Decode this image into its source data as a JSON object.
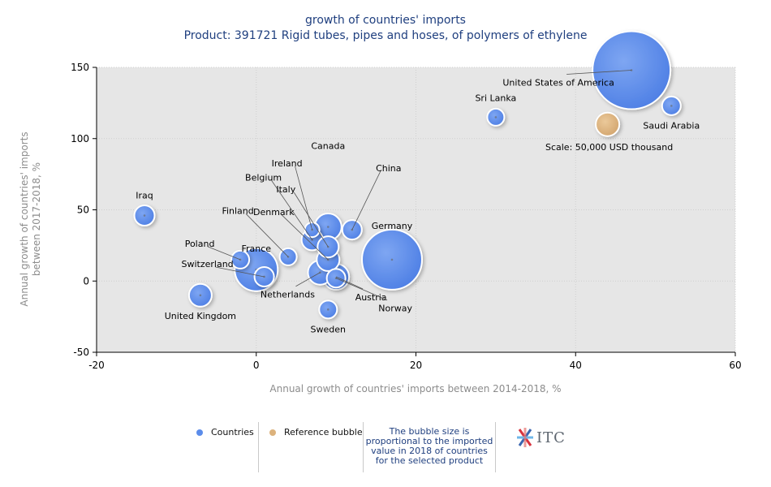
{
  "title_line1": "growth of countries' imports",
  "title_line2": "Product: 391721 Rigid tubes, pipes and hoses, of polymers of ethylene",
  "chart_data": {
    "type": "scatter",
    "subtype": "bubble",
    "xlabel": "Annual growth of countries' imports between 2014-2018, %",
    "ylabel": "Annual growth of countries' imports between 2017-2018, %",
    "xlim": [
      -20,
      60
    ],
    "ylim": [
      -50,
      150
    ],
    "xticks": [
      -20,
      0,
      20,
      40,
      60
    ],
    "yticks": [
      -50,
      0,
      50,
      100,
      150
    ],
    "grid": true,
    "colors": {
      "countries": "#5b8cea",
      "reference": "#dcb27c",
      "plot_bg": "#e6e6e6"
    },
    "points": [
      {
        "label": "United States of America",
        "x": 47,
        "y": 148,
        "size": 96
      },
      {
        "label": "Saudi Arabia",
        "x": 52,
        "y": 123,
        "size": 23
      },
      {
        "label": "Sri Lanka",
        "x": 30,
        "y": 115,
        "size": 21
      },
      {
        "label": "Germany",
        "x": 17,
        "y": 15,
        "size": 74
      },
      {
        "label": "China",
        "x": 12,
        "y": 36,
        "size": 24
      },
      {
        "label": "Canada",
        "x": 9,
        "y": 38,
        "size": 33
      },
      {
        "label": "Ireland",
        "x": 7,
        "y": 36,
        "size": 18
      },
      {
        "label": "Belgium",
        "x": 7,
        "y": 29,
        "size": 26
      },
      {
        "label": "Italy",
        "x": 9,
        "y": 24,
        "size": 26
      },
      {
        "label": "Denmark",
        "x": 9,
        "y": 15,
        "size": 28
      },
      {
        "label": "Finland",
        "x": 4,
        "y": 17,
        "size": 21
      },
      {
        "label": "France",
        "x": 0,
        "y": 8,
        "size": 53
      },
      {
        "label": "Poland",
        "x": -2,
        "y": 15,
        "size": 22
      },
      {
        "label": "Switzerland",
        "x": 1,
        "y": 3,
        "size": 24
      },
      {
        "label": "Netherlands",
        "x": 8,
        "y": 6,
        "size": 30
      },
      {
        "label": "Austria",
        "x": 10,
        "y": 3,
        "size": 32
      },
      {
        "label": "Norway",
        "x": 10,
        "y": 2,
        "size": 23
      },
      {
        "label": "Iraq",
        "x": -14,
        "y": 46,
        "size": 25
      },
      {
        "label": "United Kingdom",
        "x": -7,
        "y": -10,
        "size": 28
      },
      {
        "label": "Sweden",
        "x": 9,
        "y": -20,
        "size": 22
      }
    ],
    "reference_bubble": {
      "label": "Scale: 50,000 USD thousand",
      "x": 44,
      "y": 110,
      "size": 29
    }
  },
  "legend": {
    "countries": "Countries",
    "reference": "Reference bubble",
    "note": "The bubble size is proportional to the imported value in 2018 of countries for the selected product"
  },
  "logo_text": "ITC"
}
